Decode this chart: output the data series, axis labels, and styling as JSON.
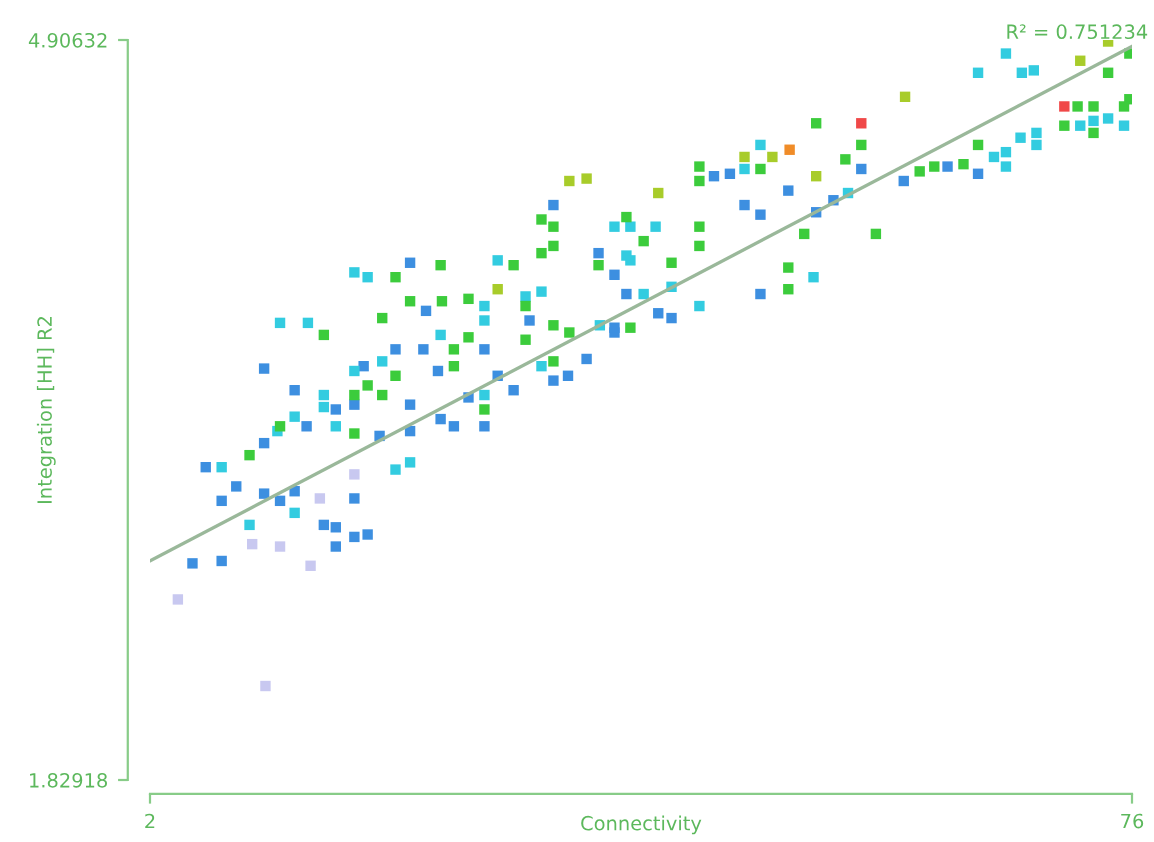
{
  "chart_data": {
    "type": "scatter",
    "xlabel": "Connectivity",
    "ylabel": "Integration [HH] R2",
    "annotations": [
      "R² = 0.751234"
    ],
    "xlim": [
      2,
      76
    ],
    "ylim": [
      1.82918,
      4.90632
    ],
    "xticks": [
      2,
      76
    ],
    "yticks": [
      4.90632,
      1.82918
    ],
    "marker": "square",
    "series": [
      {
        "color": "#3d8fe0",
        "x": [
          5.2,
          7.4,
          6.2,
          7.4,
          8.5,
          10.6,
          11.8,
          12.9,
          10.6,
          10.6,
          15.1,
          16.0,
          16.0,
          17.4,
          18.4,
          17.4,
          16.0,
          17.4,
          19.3,
          20.5,
          21.6,
          21.6,
          22.6,
          21.6,
          22.8,
          23.7,
          23.9,
          24.9,
          26.0,
          27.2,
          27.2,
          28.2,
          29.4,
          30.6,
          32.4,
          33.5,
          34.9,
          35.8,
          37.0,
          37.0,
          32.4,
          18.1,
          13.8,
          12.9,
          48.0,
          50.1,
          46.8,
          48.0,
          53.5,
          52.2,
          55.6,
          58.8,
          62.1,
          64.4,
          45.7,
          44.5,
          40.3,
          41.3,
          37.0,
          37.9
        ],
        "values": [
          2.73,
          2.74,
          3.13,
          2.99,
          3.05,
          3.02,
          2.99,
          3.03,
          3.23,
          3.54,
          2.89,
          2.88,
          2.8,
          2.84,
          2.85,
          3.0,
          3.37,
          3.39,
          3.26,
          3.62,
          3.39,
          3.28,
          3.62,
          3.98,
          3.78,
          3.53,
          3.33,
          3.3,
          3.42,
          3.62,
          3.3,
          3.51,
          3.45,
          3.74,
          3.49,
          3.51,
          3.58,
          4.02,
          3.93,
          3.69,
          4.22,
          3.55,
          3.3,
          3.45,
          3.85,
          4.28,
          4.22,
          4.18,
          4.24,
          4.19,
          4.37,
          4.32,
          4.38,
          4.35,
          4.35,
          4.34,
          3.77,
          3.75,
          3.71,
          3.85
        ]
      },
      {
        "color": "#33cce0",
        "x": [
          11.8,
          13.9,
          17.4,
          18.4,
          11.6,
          12.9,
          12.9,
          9.5,
          15.1,
          15.1,
          16.0,
          17.4,
          19.5,
          20.5,
          21.6,
          23.9,
          27.2,
          27.2,
          28.2,
          27.2,
          31.5,
          30.3,
          31.5,
          37.0,
          37.9,
          35.9,
          7.4,
          66.5,
          64.4,
          67.7,
          68.6,
          48.0,
          46.8,
          38.2,
          40.1,
          41.3,
          39.2,
          43.4,
          52.0,
          38.2,
          54.6,
          null,
          65.6,
          67.6,
          68.8,
          null,
          72.1,
          73.1,
          74.2,
          75.4,
          66.5,
          66.5,
          68.8
        ],
        "values": [
          3.73,
          3.73,
          3.94,
          3.92,
          3.28,
          3.34,
          2.94,
          2.89,
          3.43,
          3.38,
          3.3,
          3.53,
          3.57,
          3.12,
          3.15,
          3.68,
          3.8,
          3.74,
          3.99,
          3.43,
          3.86,
          3.84,
          3.55,
          4.13,
          4.01,
          3.72,
          3.13,
          4.85,
          4.77,
          4.77,
          4.78,
          4.47,
          4.37,
          4.13,
          4.13,
          3.88,
          3.85,
          3.8,
          3.92,
          3.99,
          4.27,
          null,
          4.42,
          4.5,
          4.52,
          null,
          4.55,
          4.57,
          4.58,
          4.55,
          4.44,
          4.38,
          4.47
        ]
      },
      {
        "color": "#3ccc3c",
        "x": [
          9.5,
          11.8,
          15.1,
          17.4,
          18.4,
          19.5,
          20.5,
          21.6,
          19.5,
          23.9,
          24.0,
          26.0,
          26.0,
          24.9,
          24.9,
          29.4,
          30.3,
          31.5,
          32.4,
          32.4,
          31.5,
          30.3,
          32.4,
          32.4,
          33.6,
          null,
          35.8,
          27.2,
          17.4,
          20.5,
          43.4,
          43.4,
          43.4,
          43.4,
          39.2,
          37.9,
          41.3,
          48.0,
          52.2,
          55.6,
          54.4,
          51.3,
          50.1,
          50.1,
          56.7,
          60.0,
          61.1,
          63.3,
          64.4,
          70.9,
          71.9,
          73.1,
          73.1,
          74.2,
          75.8,
          75.8,
          75.4,
          38.2
        ],
        "values": [
          3.18,
          3.3,
          3.68,
          3.43,
          3.47,
          3.43,
          3.92,
          3.82,
          3.75,
          3.97,
          3.82,
          3.83,
          3.67,
          3.62,
          3.55,
          3.97,
          3.8,
          4.02,
          4.05,
          4.13,
          4.16,
          3.66,
          3.72,
          3.57,
          3.69,
          null,
          3.97,
          3.37,
          3.27,
          3.51,
          4.38,
          4.32,
          4.13,
          4.05,
          4.07,
          4.17,
          3.98,
          4.37,
          4.56,
          4.47,
          4.41,
          4.1,
          3.96,
          3.87,
          4.1,
          4.36,
          4.38,
          4.39,
          4.47,
          4.55,
          4.63,
          4.63,
          4.52,
          4.77,
          4.85,
          4.66,
          4.63,
          3.71
        ]
      },
      {
        "color": "#a8cc2a",
        "x": [
          33.6,
          34.9,
          28.2,
          40.3,
          46.8,
          48.9,
          52.2,
          72.1,
          74.2,
          58.9
        ],
        "values": [
          4.32,
          4.33,
          3.87,
          4.27,
          4.42,
          4.42,
          4.34,
          4.82,
          4.9,
          4.67
        ]
      },
      {
        "color": "#c8c8f0",
        "x": [
          4.1,
          9.7,
          14.1,
          14.8,
          17.4,
          11.8,
          10.7
        ],
        "values": [
          2.58,
          2.81,
          2.72,
          3.0,
          3.1,
          2.8,
          2.22
        ]
      },
      {
        "color": "#f08c28",
        "x": [
          50.2
        ],
        "values": [
          4.45
        ]
      },
      {
        "color": "#f04848",
        "x": [
          55.6,
          70.9
        ],
        "values": [
          4.56,
          4.63
        ]
      },
      {
        "type": "line",
        "marker": "none",
        "color": "#9ab89a",
        "line_style": "solid",
        "x": [
          2,
          76
        ],
        "values": [
          2.74,
          4.88
        ]
      }
    ]
  }
}
